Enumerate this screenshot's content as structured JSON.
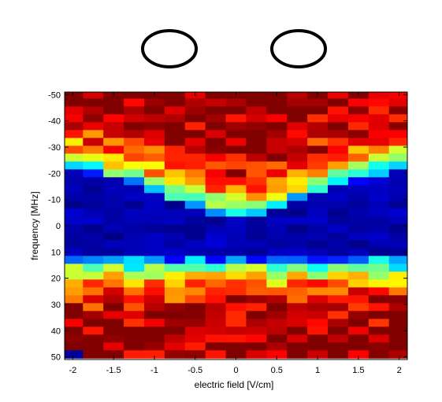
{
  "chart_data": {
    "type": "heatmap",
    "title": "",
    "xlabel": "electric field [V/cm]",
    "ylabel": "frequency [MHz]",
    "xlim": [
      -2.1,
      2.1
    ],
    "ylim": [
      -51,
      51
    ],
    "y_reversed": true,
    "grid": false,
    "colormap": "jet",
    "xticks": [
      -2,
      -1.5,
      -1,
      -0.5,
      0,
      0.5,
      1,
      1.5,
      2
    ],
    "xtick_labels": [
      "-2",
      "-1.5",
      "-1",
      "-0.5",
      "0",
      "0.5",
      "1",
      "1.5",
      "2"
    ],
    "yticks": [
      -50,
      -40,
      -30,
      -20,
      -10,
      0,
      10,
      20,
      30,
      40,
      50
    ],
    "ytick_labels": [
      "-50",
      "-40",
      "-30",
      "-20",
      "-10",
      "0",
      "10",
      "20",
      "30",
      "40",
      "50"
    ],
    "x_centers": [
      -2.0,
      -1.75,
      -1.5,
      -1.25,
      -1.0,
      -0.75,
      -0.5,
      -0.25,
      0.0,
      0.25,
      0.5,
      0.75,
      1.0,
      1.25,
      1.5,
      1.75,
      2.0
    ],
    "y_centers": [
      -50,
      -47,
      -44,
      -41,
      -38,
      -35,
      -32,
      -29,
      -26,
      -23,
      -20,
      -17,
      -14,
      -11,
      -8,
      -5,
      -2,
      1,
      4,
      7,
      10,
      13,
      16,
      19,
      22,
      25,
      28,
      31,
      34,
      37,
      40,
      43,
      46,
      49
    ],
    "value_range": [
      0,
      1
    ],
    "shape_dip_min_frequency_MHz": [
      -20,
      -18,
      -16,
      -14,
      -11,
      -8,
      -5,
      -3,
      -2,
      -3,
      -5,
      -8,
      -11,
      -14,
      -16,
      -18,
      -20
    ],
    "shape_dip_max_frequency_MHz": 11,
    "notes": "Cell values estimated from colour; dark blue (~0) band around 0 MHz, red (~1) at the edges."
  },
  "decorations": {
    "ellipses": [
      {
        "name": "left-ellipse"
      },
      {
        "name": "right-ellipse"
      }
    ]
  }
}
